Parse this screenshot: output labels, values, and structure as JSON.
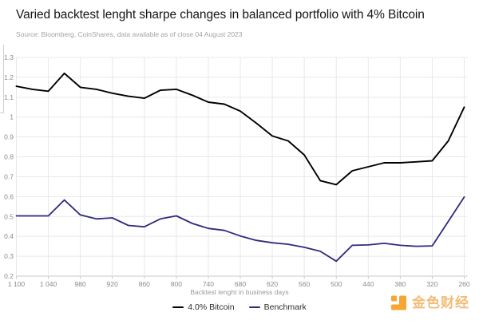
{
  "header": {
    "title": "Varied backtest lenght sharpe changes in balanced portfolio with 4% Bitcoin",
    "source": "Source: Bloomberg, CoinShares, data available as of close 04 August 2023"
  },
  "chart_data": {
    "type": "line",
    "title": "Varied backtest lenght sharpe changes in balanced portfolio with 4% Bitcoin",
    "xlabel": "Backtest lenght in business days",
    "ylabel": "",
    "x_reversed": true,
    "grid": true,
    "legend_position": "bottom",
    "xlim": [
      1100,
      260
    ],
    "ylim": [
      0.2,
      1.3
    ],
    "x_tick_values": [
      1100,
      1040,
      980,
      920,
      860,
      800,
      740,
      680,
      620,
      560,
      500,
      440,
      380,
      320,
      260
    ],
    "x_tick_labels": [
      "1 100",
      "1 040",
      "980",
      "920",
      "860",
      "800",
      "740",
      "680",
      "620",
      "560",
      "500",
      "440",
      "380",
      "320",
      "260"
    ],
    "y_tick_values": [
      1.3,
      1.2,
      1.1,
      1.0,
      0.9,
      0.8,
      0.7,
      0.6,
      0.5,
      0.4,
      0.3,
      0.2
    ],
    "y_tick_labels": [
      "1.3",
      "1.2",
      "1.1",
      "1",
      "0.9",
      "0.8",
      "0.7",
      "0.6",
      "0.5",
      "0.4",
      "0.3",
      "0.2"
    ],
    "x": [
      1100,
      1070,
      1040,
      1010,
      980,
      950,
      920,
      890,
      860,
      830,
      800,
      770,
      740,
      710,
      680,
      650,
      620,
      590,
      560,
      530,
      500,
      470,
      440,
      410,
      380,
      350,
      320,
      290,
      260
    ],
    "series": [
      {
        "name": "4.0% Bitcoin",
        "color": "#000000",
        "values": [
          1.155,
          1.14,
          1.13,
          1.22,
          1.15,
          1.14,
          1.12,
          1.105,
          1.095,
          1.135,
          1.14,
          1.11,
          1.075,
          1.065,
          1.03,
          0.97,
          0.905,
          0.88,
          0.81,
          0.68,
          0.66,
          0.73,
          0.75,
          0.77,
          0.77,
          0.775,
          0.78,
          0.88,
          1.05
        ]
      },
      {
        "name": "Benchmark",
        "color": "#2f2a7e",
        "values": [
          0.503,
          0.503,
          0.503,
          0.583,
          0.508,
          0.488,
          0.493,
          0.455,
          0.448,
          0.488,
          0.503,
          0.465,
          0.44,
          0.43,
          0.402,
          0.38,
          0.368,
          0.36,
          0.345,
          0.325,
          0.275,
          0.355,
          0.357,
          0.365,
          0.355,
          0.35,
          0.352,
          0.475,
          0.598
        ]
      }
    ]
  },
  "colors": {
    "gridline": "#e8e8e8",
    "axis_line": "#c9c9c9",
    "tick_label": "#8a8a8a"
  },
  "watermark": {
    "text": "金色财经",
    "icon_color": "#f6a632",
    "text_color": "#f2bc77"
  }
}
